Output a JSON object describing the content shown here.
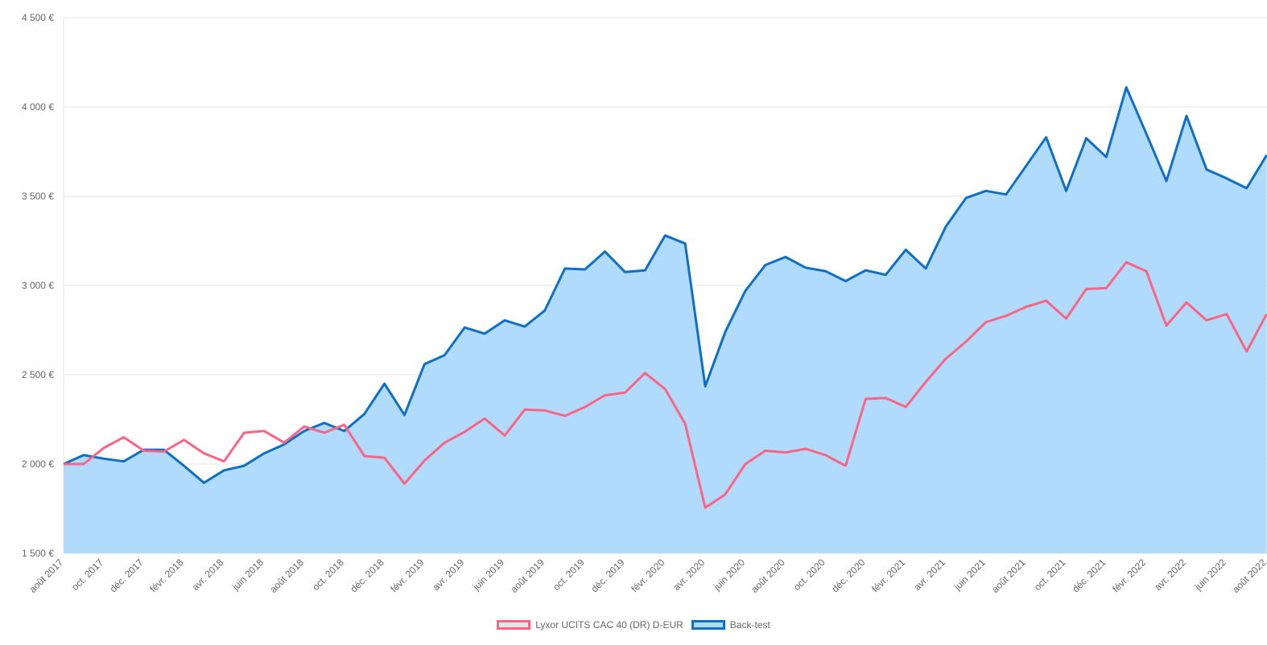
{
  "chart_data": {
    "type": "area",
    "title": "",
    "xlabel": "",
    "ylabel": "",
    "ylim": [
      1500,
      4500
    ],
    "y_ticks": [
      "1 500 €",
      "2 000 €",
      "2 500 €",
      "3 000 €",
      "3 500 €",
      "4 000 €",
      "4 500 €"
    ],
    "x_tick_labels": [
      "août 2017",
      "oct. 2017",
      "déc. 2017",
      "févr. 2018",
      "avr. 2018",
      "juin 2018",
      "août 2018",
      "oct. 2018",
      "déc. 2018",
      "févr. 2019",
      "avr. 2019",
      "juin 2019",
      "août 2019",
      "oct. 2019",
      "déc. 2019",
      "févr. 2020",
      "avr. 2020",
      "juin 2020",
      "août 2020",
      "oct. 2020",
      "déc. 2020",
      "févr. 2021",
      "avr. 2021",
      "juin 2021",
      "août 2021",
      "oct. 2021",
      "déc. 2021",
      "févr. 2022",
      "avr. 2022",
      "juin 2022",
      "août 2022"
    ],
    "grid": true,
    "legend_position": "bottom",
    "series": [
      {
        "name": "Lyxor UCITS CAC 40 (DR) D-EUR",
        "color": "#ff6384",
        "fill": "#e6e6e6",
        "values": [
          2000,
          2000,
          2090,
          2150,
          2075,
          2070,
          2135,
          2060,
          2015,
          2175,
          2185,
          2120,
          2210,
          2175,
          2220,
          2045,
          2035,
          1890,
          2020,
          2120,
          2180,
          2255,
          2160,
          2305,
          2300,
          2270,
          2320,
          2385,
          2400,
          2510,
          2420,
          2225,
          1755,
          1830,
          2000,
          2075,
          2065,
          2085,
          2050,
          1990,
          2365,
          2370,
          2320,
          2460,
          2590,
          2685,
          2795,
          2830,
          2880,
          2915,
          2815,
          2980,
          2985,
          3130,
          3080,
          2775,
          2905,
          2805,
          2840,
          2630,
          2840
        ]
      },
      {
        "name": "Back-test",
        "color": "#0f6fc6",
        "fill": "#b1dbfd",
        "values": [
          2000,
          2050,
          2030,
          2015,
          2080,
          2080,
          1990,
          1895,
          1965,
          1990,
          2060,
          2110,
          2185,
          2230,
          2185,
          2280,
          2450,
          2275,
          2560,
          2610,
          2765,
          2730,
          2805,
          2770,
          2860,
          3095,
          3090,
          3190,
          3075,
          3085,
          3280,
          3235,
          2435,
          2740,
          2970,
          3115,
          3160,
          3100,
          3080,
          3025,
          3085,
          3060,
          3200,
          3095,
          3330,
          3490,
          3530,
          3510,
          3670,
          3830,
          3530,
          3825,
          3720,
          4110,
          3850,
          3585,
          3950,
          3650,
          3600,
          3545,
          3730
        ]
      }
    ]
  }
}
